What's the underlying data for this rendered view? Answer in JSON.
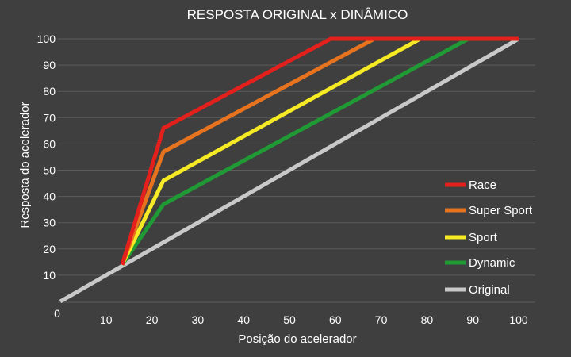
{
  "chart_data": {
    "type": "line",
    "title": "RESPOSTA ORIGINAL x DINÂMICO",
    "xlabel": "Posição do acelerador",
    "ylabel": "Resposta do acelerador",
    "xlim": [
      0,
      100
    ],
    "ylim": [
      0,
      100
    ],
    "x_ticks": [
      "0",
      "10",
      "20",
      "30",
      "40",
      "50",
      "60",
      "70",
      "80",
      "90",
      "100"
    ],
    "y_ticks": [
      "0",
      "10",
      "20",
      "30",
      "40",
      "50",
      "60",
      "70",
      "80",
      "90",
      "100"
    ],
    "grid": "horizontal",
    "legend_position": "right",
    "background": "#3f3f3f",
    "series": [
      {
        "name": "Race",
        "color": "#e3201b",
        "points": [
          [
            13.5,
            14
          ],
          [
            22.5,
            66
          ],
          [
            59,
            100
          ],
          [
            100,
            100
          ]
        ]
      },
      {
        "name": "Super Sport",
        "color": "#e8731e",
        "points": [
          [
            13.5,
            14
          ],
          [
            22.5,
            57
          ],
          [
            68.5,
            100
          ],
          [
            100,
            100
          ]
        ]
      },
      {
        "name": "Sport",
        "color": "#f5ea23",
        "points": [
          [
            13.5,
            14
          ],
          [
            22.5,
            46
          ],
          [
            78.5,
            100
          ],
          [
            100,
            100
          ]
        ]
      },
      {
        "name": "Dynamic",
        "color": "#1f9a35",
        "points": [
          [
            13.5,
            14
          ],
          [
            22.5,
            37
          ],
          [
            89,
            100
          ],
          [
            100,
            100
          ]
        ]
      },
      {
        "name": "Original",
        "color": "#c9c9c9",
        "points": [
          [
            0,
            0
          ],
          [
            100,
            100
          ]
        ]
      }
    ]
  }
}
